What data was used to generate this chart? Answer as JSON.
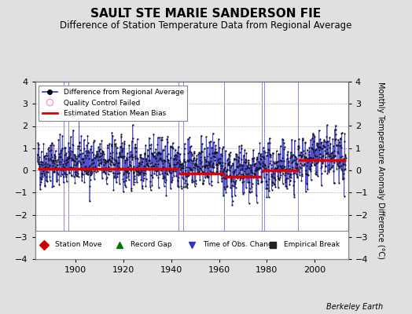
{
  "title": "SAULT STE MARIE SANDERSON FIE",
  "subtitle": "Difference of Station Temperature Data from Regional Average",
  "ylabel": "Monthly Temperature Anomaly Difference (°C)",
  "xlabel_ticks": [
    1900,
    1920,
    1940,
    1960,
    1980,
    2000
  ],
  "ylim": [
    -4,
    4
  ],
  "xlim": [
    1883,
    2014
  ],
  "background_color": "#e0e0e0",
  "plot_bg_color": "#ffffff",
  "grid_color": "#bbbbbb",
  "title_fontsize": 11,
  "subtitle_fontsize": 8.5,
  "ylabel_fontsize": 7,
  "seed": 42,
  "time_start": 1884,
  "time_end": 2013,
  "num_points": 1548,
  "bias_segments": [
    {
      "start": 1884,
      "end": 1895,
      "value": 0.08
    },
    {
      "start": 1895,
      "end": 1943,
      "value": 0.08
    },
    {
      "start": 1943,
      "end": 1962,
      "value": -0.15
    },
    {
      "start": 1962,
      "end": 1978,
      "value": -0.28
    },
    {
      "start": 1978,
      "end": 1993,
      "value": 0.0
    },
    {
      "start": 1993,
      "end": 2013,
      "value": 0.45
    }
  ],
  "station_moves": [
    1895,
    1897,
    1943,
    1945,
    1978,
    1979
  ],
  "empirical_breaks": [
    1962,
    1993
  ],
  "vertical_lines": [
    1895,
    1897,
    1943,
    1945,
    1962,
    1978,
    1979,
    1993
  ],
  "vline_color": "#8888ee",
  "line_color": "#3333cc",
  "marker_color": "#111111",
  "bias_color": "#dd0000",
  "station_move_color": "#cc0000",
  "empirical_break_color": "#222222",
  "obs_change_color": "#3333cc",
  "record_gap_color": "#007700",
  "qc_failed_color": "#ff99bb"
}
